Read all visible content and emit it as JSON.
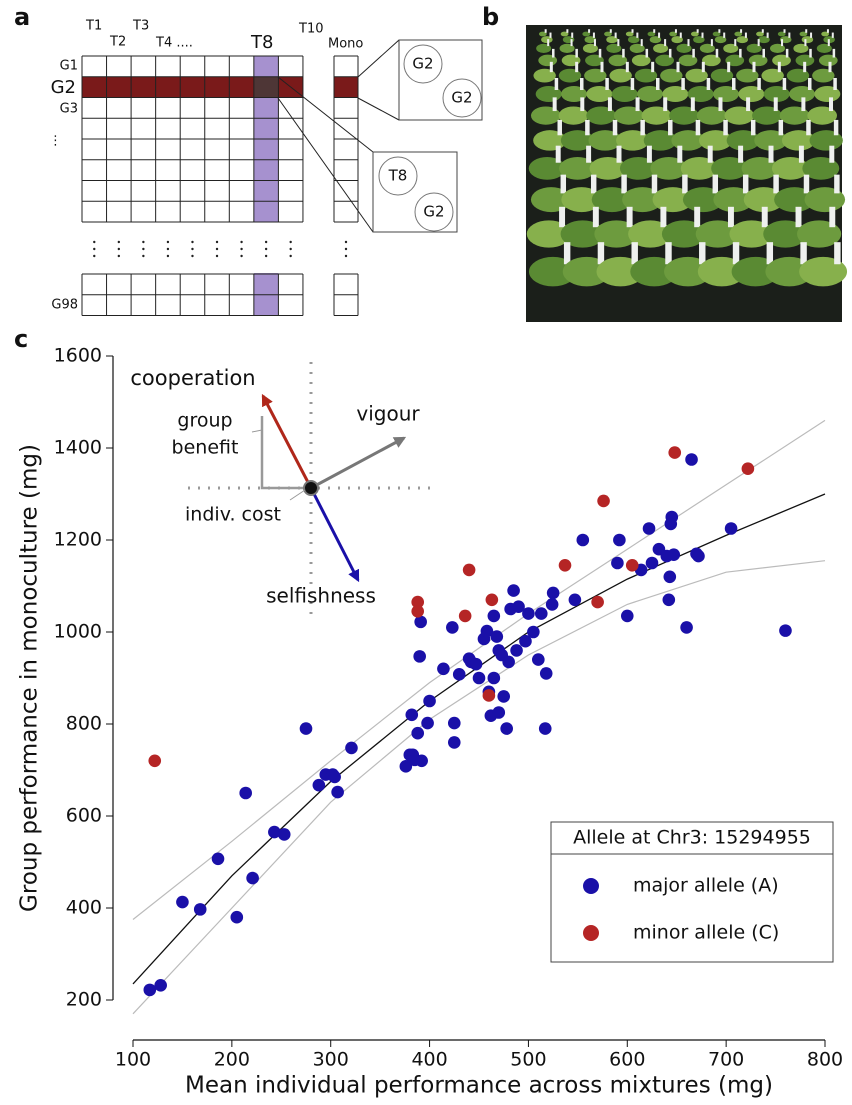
{
  "panels": {
    "a": {
      "label": "a",
      "columns": [
        "T1",
        "T2",
        "T3",
        "T4 ....",
        "T8",
        "T10",
        "Mono"
      ],
      "rows": [
        "G1",
        "G2",
        "G3",
        "⋮",
        "G98"
      ],
      "zoom_1": [
        "G2",
        "G2"
      ],
      "zoom_2": [
        "T8",
        "G2"
      ]
    },
    "b": {
      "label": "b"
    },
    "c": {
      "label": "c"
    }
  },
  "inset": {
    "cooperation": "cooperation",
    "selfishness": "selfishness",
    "vigour": "vigour",
    "group_benefit": [
      "group",
      "benefit"
    ],
    "indiv_cost": "indiv. cost"
  },
  "chart_data": {
    "type": "scatter",
    "x_label": "Mean individual performance across mixtures (mg)",
    "y_label": "Group performance in monoculture (mg)",
    "xlim": [
      100,
      800
    ],
    "ylim": [
      200,
      1600
    ],
    "xticks": [
      100,
      200,
      300,
      400,
      500,
      600,
      700,
      800
    ],
    "yticks": [
      200,
      400,
      600,
      800,
      1000,
      1200,
      1400,
      1600
    ],
    "legend_title": "Allele at Chr3: 15294955",
    "series": [
      {
        "name": "major allele (A)",
        "color": "#1a10a8",
        "x": [
          117,
          128,
          150,
          168,
          186,
          205,
          214,
          221,
          243,
          253,
          275,
          288,
          295,
          302,
          304,
          307,
          321,
          376,
          380,
          382,
          383,
          385,
          388,
          390,
          391,
          392,
          398,
          400,
          414,
          423,
          425,
          425,
          430,
          440,
          442,
          447,
          450,
          455,
          458,
          460,
          462,
          465,
          465,
          468,
          470,
          470,
          473,
          475,
          478,
          480,
          482,
          485,
          488,
          490,
          497,
          500,
          505,
          510,
          513,
          517,
          518,
          524,
          525,
          547,
          555,
          590,
          592,
          600,
          614,
          622,
          625,
          632,
          640,
          642,
          643,
          644,
          645,
          647,
          660,
          665,
          670,
          672,
          705,
          760
        ],
        "values": [
          222,
          232,
          413,
          397,
          507,
          380,
          650,
          465,
          565,
          560,
          790,
          667,
          690,
          690,
          685,
          652,
          748,
          708,
          733,
          820,
          733,
          722,
          780,
          947,
          1022,
          720,
          802,
          850,
          920,
          1010,
          802,
          760,
          908,
          942,
          935,
          930,
          900,
          985,
          1002,
          870,
          818,
          1035,
          900,
          990,
          825,
          960,
          950,
          860,
          790,
          935,
          1050,
          1090,
          960,
          1055,
          980,
          1040,
          1000,
          940,
          1040,
          790,
          910,
          1060,
          1085,
          1070,
          1200,
          1150,
          1200,
          1035,
          1135,
          1225,
          1150,
          1180,
          1165,
          1070,
          1120,
          1235,
          1250,
          1168,
          1010,
          1375,
          1170,
          1165,
          1225,
          1003
        ]
      },
      {
        "name": "minor allele (C)",
        "color": "#b52525",
        "x": [
          122,
          388,
          388,
          436,
          440,
          460,
          463,
          537,
          570,
          576,
          605,
          648,
          722
        ],
        "values": [
          720,
          1065,
          1045,
          1035,
          1135,
          862,
          1070,
          1145,
          1065,
          1285,
          1145,
          1390,
          1355
        ]
      }
    ],
    "fit": {
      "color": "#111",
      "band_color": "#bbb",
      "x": [
        100,
        200,
        300,
        400,
        500,
        600,
        700,
        800
      ],
      "values": [
        235,
        470,
        675,
        850,
        1000,
        1115,
        1210,
        1300
      ],
      "upper": [
        375,
        545,
        720,
        890,
        1040,
        1180,
        1320,
        1460
      ],
      "lower": [
        170,
        400,
        630,
        810,
        950,
        1060,
        1130,
        1155
      ]
    }
  }
}
